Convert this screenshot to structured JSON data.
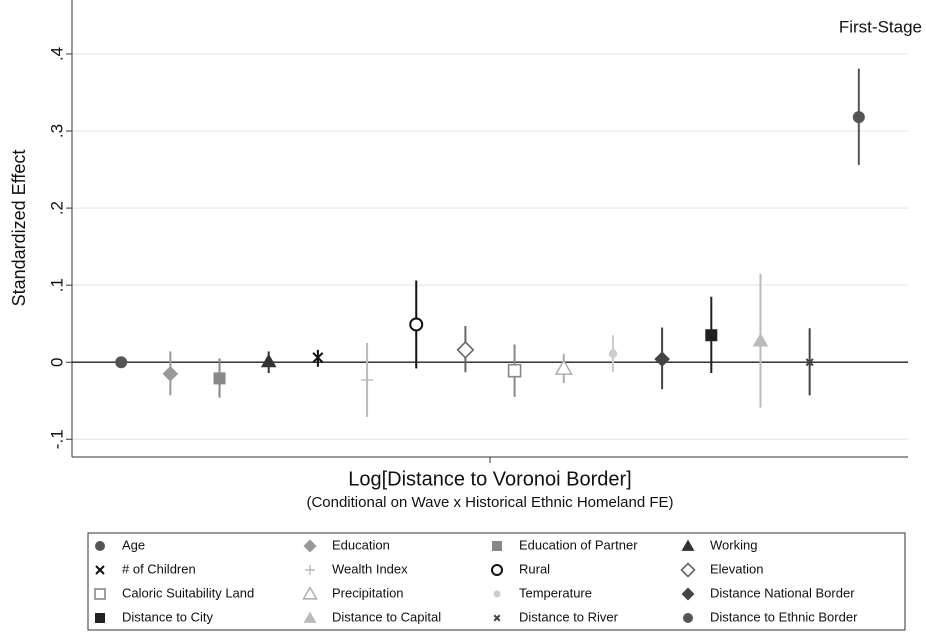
{
  "chart_data": {
    "type": "coefplot",
    "annotation": "First-Stage",
    "y_label": "Standardized Effect",
    "x_label": "Log[Distance to Voronoi Border]",
    "x_sublabel": "(Conditional on Wave x Historical Ethnic Homeland FE)",
    "ylim": [
      -0.123,
      0.47
    ],
    "yticks": [
      {
        "value": -0.1,
        "label": "-.1"
      },
      0,
      {
        "value": 0.1,
        "label": ".1"
      },
      {
        "value": 0.2,
        "label": ".2"
      },
      {
        "value": 0.3,
        "label": ".3"
      },
      {
        "value": 0.4,
        "label": ".4"
      }
    ],
    "grid": true,
    "series": [
      {
        "name": "Age",
        "color": "#555555",
        "marker": "circle",
        "value": 0,
        "lower": 0,
        "upper": 0
      },
      {
        "name": "Education",
        "color": "#999999",
        "marker": "diamond",
        "value": -0.015,
        "lower": -0.043,
        "upper": 0.014
      },
      {
        "name": "Education of Partner",
        "color": "#888888",
        "marker": "square",
        "value": -0.021,
        "lower": -0.046,
        "upper": 0.005
      },
      {
        "name": "Working",
        "color": "#333333",
        "marker": "triangle",
        "value": 0.001,
        "lower": -0.014,
        "upper": 0.014
      },
      {
        "name": "# of Children",
        "color": "#111111",
        "marker": "x",
        "value": 0.006,
        "lower": -0.006,
        "upper": 0.016
      },
      {
        "name": "Wealth Index",
        "color": "#bbbbbb",
        "marker": "plus",
        "value": -0.023,
        "lower": -0.071,
        "upper": 0.025
      },
      {
        "name": "Rural",
        "color": "#111111",
        "marker": "circle-open",
        "value": 0.049,
        "lower": -0.008,
        "upper": 0.106
      },
      {
        "name": "Elevation",
        "color": "#666666",
        "marker": "diamond-open",
        "value": 0.016,
        "lower": -0.013,
        "upper": 0.047
      },
      {
        "name": "Caloric Suitability Land",
        "color": "#888888",
        "marker": "square-open",
        "value": -0.011,
        "lower": -0.045,
        "upper": 0.023
      },
      {
        "name": "Precipitation",
        "color": "#aaaaaa",
        "marker": "triangle-open",
        "value": -0.008,
        "lower": -0.027,
        "upper": 0.011
      },
      {
        "name": "Temperature",
        "color": "#cccccc",
        "marker": "circle-small",
        "value": 0.011,
        "lower": -0.013,
        "upper": 0.035
      },
      {
        "name": "Distance National Border",
        "color": "#444444",
        "marker": "diamond",
        "value": 0.004,
        "lower": -0.035,
        "upper": 0.045
      },
      {
        "name": "Distance to City",
        "color": "#222222",
        "marker": "square",
        "value": 0.035,
        "lower": -0.014,
        "upper": 0.085
      },
      {
        "name": "Distance to Capital",
        "color": "#bbbbbb",
        "marker": "triangle",
        "value": 0.028,
        "lower": -0.059,
        "upper": 0.115
      },
      {
        "name": "Distance to River",
        "color": "#444444",
        "marker": "x-small",
        "value": 0,
        "lower": -0.043,
        "upper": 0.044
      },
      {
        "name": "Distance to Ethnic Border",
        "color": "#555555",
        "marker": "circle",
        "value": 0.318,
        "lower": 0.256,
        "upper": 0.381
      }
    ]
  }
}
